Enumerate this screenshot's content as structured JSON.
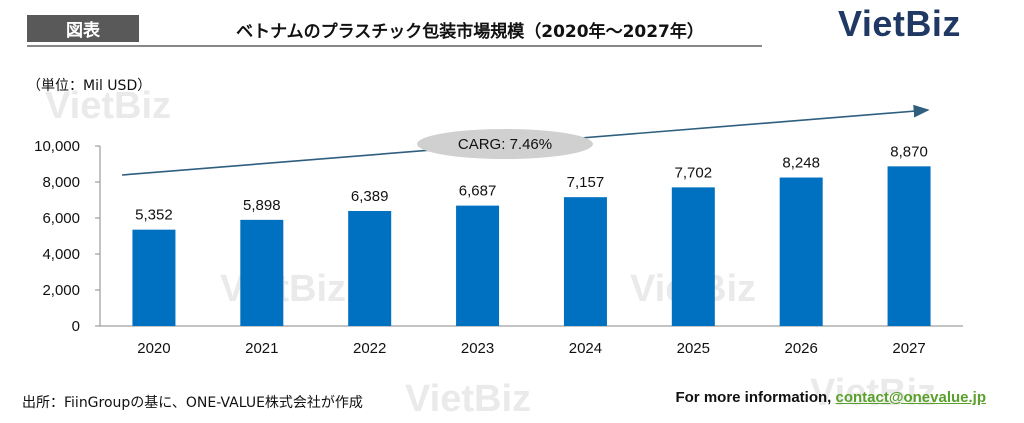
{
  "header": {
    "tag_label": "図表",
    "title": "ベトナムのプラスチック包装市場規模（2020年～2027年）",
    "logo": "VietBiz"
  },
  "watermark": "VietBiz",
  "colors": {
    "bar": "#0070c0",
    "logo": "#1f3864",
    "link": "#5aa02c",
    "tag_bg": "#595959"
  },
  "chart_data": {
    "type": "bar",
    "unit_label": "（単位：Mil USD）",
    "categories": [
      "2020",
      "2021",
      "2022",
      "2023",
      "2024",
      "2025",
      "2026",
      "2027"
    ],
    "values": [
      5352,
      5898,
      6389,
      6687,
      7157,
      7702,
      8248,
      8870
    ],
    "value_labels": [
      "5,352",
      "5,898",
      "6,389",
      "6,687",
      "7,157",
      "7,702",
      "8,248",
      "8,870"
    ],
    "ylim": [
      0,
      10000
    ],
    "yticks": [
      "0",
      "2,000",
      "4,000",
      "6,000",
      "8,000",
      "10,000"
    ],
    "ytick_values": [
      0,
      2000,
      4000,
      6000,
      8000,
      10000
    ],
    "annotation": "CARG: 7.46%",
    "grid": false
  },
  "footer": {
    "source": "出所：FiinGroupの基に、ONE-VALUE株式会社が作成",
    "info_prefix": "For more information, ",
    "contact": "contact@onevalue.jp"
  }
}
